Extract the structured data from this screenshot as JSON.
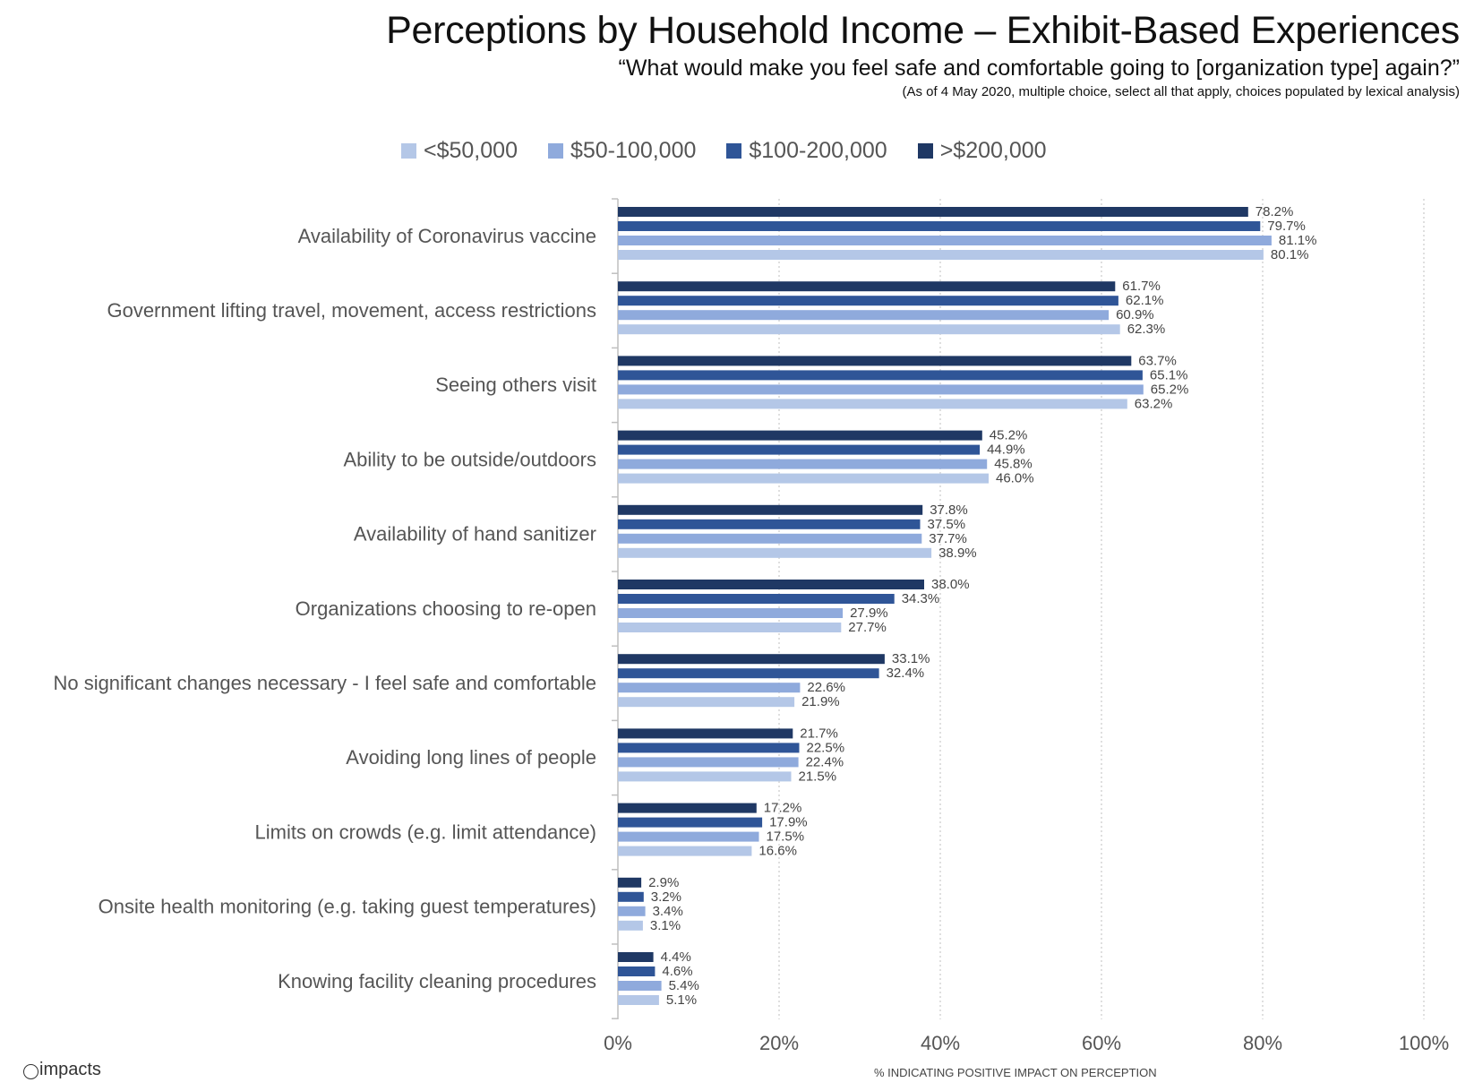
{
  "header": {
    "title": "Perceptions by Household Income – Exhibit-Based Experiences",
    "subtitle": "“What would make you feel safe and comfortable going to [organization type] again?”",
    "note": "(As of 4 May 2020, multiple choice, select all that apply, choices populated by lexical analysis)"
  },
  "logo": {
    "text": "impacts",
    "icon": "impacts-logo-icon"
  },
  "chart_data": {
    "type": "bar",
    "orientation": "horizontal",
    "title": "Perceptions by Household Income – Exhibit-Based Experiences",
    "xlabel": "% INDICATING POSITIVE IMPACT ON PERCEPTION",
    "ylabel": "",
    "xlim": [
      0,
      100
    ],
    "xticks": [
      "0%",
      "20%",
      "40%",
      "60%",
      "80%",
      "100%"
    ],
    "grid": "vertical dotted",
    "legend_position": "top",
    "categories": [
      "Availability of Coronavirus vaccine",
      "Government lifting travel, movement, access restrictions",
      "Seeing others visit",
      "Ability to be outside/outdoors",
      "Availability of hand sanitizer",
      "Organizations choosing to re-open",
      "No significant changes necessary - I feel safe and comfortable",
      "Avoiding long lines of people",
      "Limits on crowds (e.g. limit attendance)",
      "Onsite health monitoring (e.g. taking guest temperatures)",
      "Knowing facility cleaning procedures"
    ],
    "series": [
      {
        "name": ">$200,000",
        "color": "#1f3864",
        "values": [
          78.2,
          61.7,
          63.7,
          45.2,
          37.8,
          38.0,
          33.1,
          21.7,
          17.2,
          2.9,
          4.4
        ],
        "labels": [
          "78.2%",
          "61.7%",
          "63.7%",
          "45.2%",
          "37.8%",
          "38.0%",
          "33.1%",
          "21.7%",
          "17.2%",
          "2.9%",
          "4.4%"
        ]
      },
      {
        "name": "$100-200,000",
        "color": "#2f5597",
        "values": [
          79.7,
          62.1,
          65.1,
          44.9,
          37.5,
          34.3,
          32.4,
          22.5,
          17.9,
          3.2,
          4.6
        ],
        "labels": [
          "79.7%",
          "62.1%",
          "65.1%",
          "44.9%",
          "37.5%",
          "34.3%",
          "32.4%",
          "22.5%",
          "17.9%",
          "3.2%",
          "4.6%"
        ]
      },
      {
        "name": "$50-100,000",
        "color": "#8faadc",
        "values": [
          81.1,
          60.9,
          65.2,
          45.8,
          37.7,
          27.9,
          22.6,
          22.4,
          17.5,
          3.4,
          5.4
        ],
        "labels": [
          "81.1%",
          "60.9%",
          "65.2%",
          "45.8%",
          "37.7%",
          "27.9%",
          "22.6%",
          "22.4%",
          "17.5%",
          "3.4%",
          "5.4%"
        ]
      },
      {
        "name": "<$50,000",
        "color": "#b4c7e7",
        "values": [
          80.1,
          62.3,
          63.2,
          46.0,
          38.9,
          27.7,
          21.9,
          21.5,
          16.6,
          3.1,
          5.1
        ],
        "labels": [
          "80.1%",
          "62.3%",
          "63.2%",
          "46.0%",
          "38.9%",
          "27.7%",
          "21.9%",
          "21.5%",
          "16.6%",
          "3.1%",
          "5.1%"
        ]
      }
    ],
    "legend_order": [
      "<$50,000",
      "$50-100,000",
      "$100-200,000",
      ">$200,000"
    ]
  }
}
